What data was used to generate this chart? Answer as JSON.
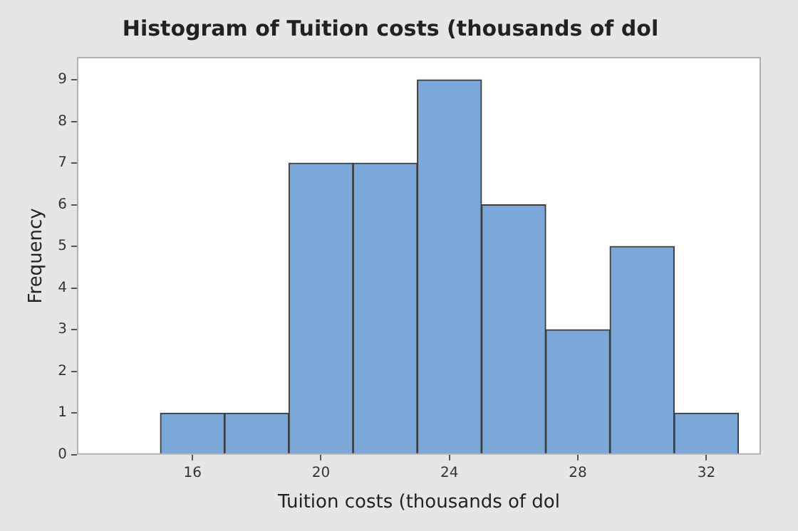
{
  "chart_data": {
    "type": "histogram",
    "title": "Histogram of Tuition costs (thousands of dol",
    "xlabel": "Tuition costs (thousands of dol",
    "ylabel": "Frequency",
    "bins": [
      13,
      15,
      17,
      19,
      21,
      23,
      25,
      27,
      29,
      31,
      33
    ],
    "values": [
      0,
      1,
      1,
      7,
      7,
      9,
      6,
      3,
      5,
      1
    ],
    "color": "#7ba7d9",
    "xlim": [
      12.4,
      33.7
    ],
    "ylim": [
      0,
      9.55
    ],
    "xticks": [
      16,
      20,
      24,
      28,
      32
    ],
    "yticks": [
      0,
      1,
      2,
      3,
      4,
      5,
      6,
      7,
      8,
      9
    ]
  }
}
